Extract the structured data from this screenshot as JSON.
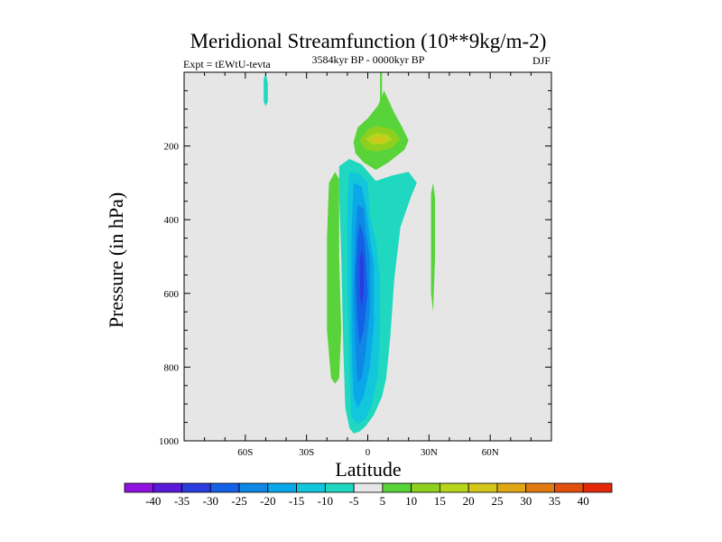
{
  "chart_data": {
    "type": "contour",
    "title": "Meridional Streamfunction (10**9kg/m-2)",
    "subtitle_left": "Expt = tEWtU-tevta",
    "subtitle_center": "3584kyr BP - 0000kyr BP",
    "subtitle_right": "DJF",
    "xlabel": "Latitude",
    "ylabel": "Pressure (in hPa)",
    "xlim": [
      -90,
      90
    ],
    "ylim": [
      1000,
      0
    ],
    "x_ticks": [
      {
        "value": -60,
        "label": "60S"
      },
      {
        "value": -30,
        "label": "30S"
      },
      {
        "value": 0,
        "label": "0"
      },
      {
        "value": 30,
        "label": "30N"
      },
      {
        "value": 60,
        "label": "60N"
      }
    ],
    "y_ticks": [
      {
        "value": 200,
        "label": "200"
      },
      {
        "value": 400,
        "label": "400"
      },
      {
        "value": 600,
        "label": "600"
      },
      {
        "value": 800,
        "label": "800"
      },
      {
        "value": 1000,
        "label": "1000"
      }
    ],
    "background_color": "#e6e6e6",
    "colorbar": {
      "labels": [
        "-40",
        "-35",
        "-30",
        "-25",
        "-20",
        "-15",
        "-10",
        "-5",
        "5",
        "10",
        "15",
        "20",
        "25",
        "30",
        "35",
        "40"
      ],
      "colors": [
        "#8f12e0",
        "#5b1ad8",
        "#2a3ce0",
        "#1460e6",
        "#0e88e4",
        "#0aa8e8",
        "#12c6dc",
        "#1fd8bf",
        "#e6e6e6",
        "#58d43a",
        "#8fd01f",
        "#b8d41c",
        "#d4c61a",
        "#e0a616",
        "#e27a12",
        "#e2500e",
        "#e22a0a"
      ]
    },
    "regions": [
      {
        "name": "sh-positive-column",
        "level": 5,
        "points": [
          [
            -16,
            270
          ],
          [
            -14,
            290
          ],
          [
            -14,
            500
          ],
          [
            -13,
            700
          ],
          [
            -14,
            830
          ],
          [
            -16,
            845
          ],
          [
            -18,
            830
          ],
          [
            -20,
            700
          ],
          [
            -20,
            450
          ],
          [
            -19,
            300
          ]
        ]
      },
      {
        "name": "top-cyan-patch",
        "level": -5,
        "points": [
          [
            -50,
            0
          ],
          [
            -49,
            30
          ],
          [
            -49,
            80
          ],
          [
            -50,
            92
          ],
          [
            -51,
            80
          ],
          [
            -51,
            20
          ]
        ]
      },
      {
        "name": "upper-positive-cell",
        "level": 5,
        "points": [
          [
            -7,
            190
          ],
          [
            -5,
            150
          ],
          [
            0,
            125
          ],
          [
            5,
            90
          ],
          [
            8,
            50
          ],
          [
            13,
            110
          ],
          [
            17,
            150
          ],
          [
            20,
            185
          ],
          [
            18,
            210
          ],
          [
            10,
            245
          ],
          [
            4,
            265
          ],
          [
            -2,
            245
          ],
          [
            -6,
            220
          ]
        ]
      },
      {
        "name": "upper-positive-cell-10",
        "level": 10,
        "points": [
          [
            -4,
            185
          ],
          [
            0,
            155
          ],
          [
            5,
            145
          ],
          [
            12,
            155
          ],
          [
            16,
            180
          ],
          [
            12,
            205
          ],
          [
            5,
            215
          ],
          [
            -1,
            210
          ]
        ]
      },
      {
        "name": "upper-positive-cell-15",
        "level": 15,
        "points": [
          [
            -1,
            180
          ],
          [
            4,
            165
          ],
          [
            10,
            170
          ],
          [
            12,
            182
          ],
          [
            8,
            195
          ],
          [
            2,
            195
          ]
        ]
      },
      {
        "name": "upper-positive-cell-20",
        "level": 20,
        "points": [
          [
            2,
            182
          ],
          [
            5,
            175
          ],
          [
            9,
            178
          ],
          [
            9,
            186
          ],
          [
            5,
            190
          ],
          [
            2,
            188
          ]
        ]
      },
      {
        "name": "top-green-thread",
        "level": 5,
        "points": [
          [
            6,
            0
          ],
          [
            7,
            0
          ],
          [
            7,
            90
          ],
          [
            6,
            90
          ]
        ]
      },
      {
        "name": "nh-positive-streak",
        "level": 5,
        "points": [
          [
            32,
            300
          ],
          [
            33,
            340
          ],
          [
            33,
            500
          ],
          [
            32,
            650
          ],
          [
            31,
            600
          ],
          [
            31,
            330
          ]
        ]
      },
      {
        "name": "main-cell-m5",
        "level": -5,
        "points": [
          [
            -14,
            255
          ],
          [
            -9,
            235
          ],
          [
            -3,
            250
          ],
          [
            4,
            295
          ],
          [
            12,
            280
          ],
          [
            20,
            270
          ],
          [
            24,
            300
          ],
          [
            21,
            340
          ],
          [
            16,
            420
          ],
          [
            13,
            560
          ],
          [
            11,
            720
          ],
          [
            9,
            830
          ],
          [
            7,
            880
          ],
          [
            3,
            930
          ],
          [
            -1,
            960
          ],
          [
            -4,
            975
          ],
          [
            -7,
            980
          ],
          [
            -9,
            965
          ],
          [
            -11,
            910
          ],
          [
            -12,
            750
          ],
          [
            -13,
            500
          ],
          [
            -14,
            330
          ]
        ]
      },
      {
        "name": "main-cell-m10",
        "level": -10,
        "points": [
          [
            -9,
            270
          ],
          [
            -4,
            275
          ],
          [
            0,
            300
          ],
          [
            1,
            390
          ],
          [
            4,
            460
          ],
          [
            6,
            560
          ],
          [
            6,
            700
          ],
          [
            5,
            820
          ],
          [
            2,
            900
          ],
          [
            -1,
            940
          ],
          [
            -5,
            955
          ],
          [
            -8,
            935
          ],
          [
            -9,
            800
          ],
          [
            -10,
            550
          ],
          [
            -10,
            350
          ]
        ]
      },
      {
        "name": "main-cell-m15",
        "level": -15,
        "points": [
          [
            -7,
            300
          ],
          [
            -3,
            310
          ],
          [
            -1,
            360
          ],
          [
            1,
            450
          ],
          [
            3,
            520
          ],
          [
            3,
            680
          ],
          [
            1,
            800
          ],
          [
            -2,
            880
          ],
          [
            -5,
            910
          ],
          [
            -7,
            880
          ],
          [
            -8,
            720
          ],
          [
            -8,
            450
          ]
        ]
      },
      {
        "name": "main-cell-m20",
        "level": -20,
        "points": [
          [
            -5,
            360
          ],
          [
            -2,
            370
          ],
          [
            -1,
            430
          ],
          [
            1,
            500
          ],
          [
            1,
            650
          ],
          [
            -1,
            760
          ],
          [
            -3,
            830
          ],
          [
            -5,
            840
          ],
          [
            -6,
            760
          ],
          [
            -7,
            600
          ],
          [
            -6,
            430
          ]
        ]
      },
      {
        "name": "main-cell-m25",
        "level": -25,
        "points": [
          [
            -4,
            410
          ],
          [
            -2,
            440
          ],
          [
            -1,
            500
          ],
          [
            0,
            600
          ],
          [
            -2,
            700
          ],
          [
            -4,
            740
          ],
          [
            -5,
            680
          ],
          [
            -6,
            560
          ],
          [
            -5,
            450
          ]
        ]
      },
      {
        "name": "main-cell-m30",
        "level": -30,
        "points": [
          [
            -3,
            480
          ],
          [
            -2,
            510
          ],
          [
            -2,
            600
          ],
          [
            -3,
            640
          ],
          [
            -4,
            600
          ],
          [
            -4,
            510
          ]
        ]
      }
    ]
  }
}
